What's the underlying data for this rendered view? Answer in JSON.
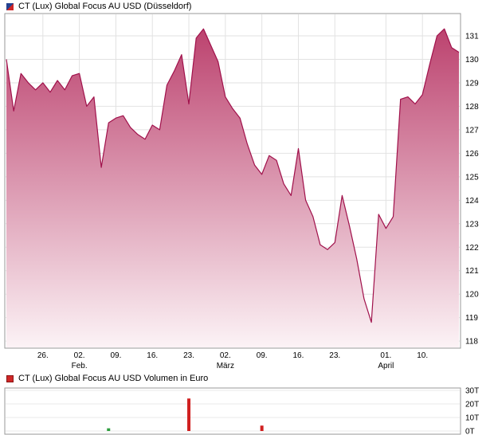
{
  "header": {
    "title": "CT (Lux) Global Focus AU USD (Düsseldorf)"
  },
  "volume_header": {
    "title": "CT (Lux) Global Focus AU USD Volumen in Euro"
  },
  "chart_data": [
    {
      "type": "area",
      "title": "CT (Lux) Global Focus AU USD (Düsseldorf)",
      "ylabel": "",
      "ylim": [
        117.7,
        131.95
      ],
      "y_ticks": [
        118,
        119,
        120,
        121,
        122,
        123,
        124,
        125,
        126,
        127,
        128,
        129,
        130,
        131
      ],
      "y_axis_side": "right",
      "grid": true,
      "x_tick_labels": [
        "26.",
        "02.",
        "09.",
        "16.",
        "23.",
        "02.",
        "09.",
        "16.",
        "23.",
        "01.",
        "10."
      ],
      "x_tick_indices": [
        5,
        10,
        15,
        20,
        25,
        30,
        35,
        40,
        45,
        52,
        57
      ],
      "month_labels": [
        {
          "label": "Feb.",
          "index": 10
        },
        {
          "label": "März",
          "index": 30
        },
        {
          "label": "April",
          "index": 52
        }
      ],
      "values": [
        130.0,
        127.8,
        129.4,
        129.0,
        128.7,
        129.0,
        128.6,
        129.1,
        128.7,
        129.3,
        129.4,
        128.0,
        128.4,
        125.4,
        127.3,
        127.5,
        127.6,
        127.1,
        126.8,
        126.6,
        127.2,
        127.0,
        128.9,
        129.5,
        130.2,
        128.1,
        130.9,
        131.3,
        130.6,
        129.9,
        128.4,
        127.9,
        127.5,
        126.4,
        125.5,
        125.1,
        125.9,
        125.7,
        124.7,
        124.2,
        126.2,
        124.0,
        123.3,
        122.1,
        121.9,
        122.2,
        124.2,
        122.9,
        121.5,
        119.8,
        118.8,
        123.4,
        122.8,
        123.3,
        128.3,
        128.4,
        128.1,
        128.5,
        129.8,
        131.0,
        131.3,
        130.5,
        130.3
      ],
      "colors": {
        "line": "#a0114b",
        "fill_top": "#b93a68",
        "fill_bottom": "#fcf3f6",
        "grid": "#e2e2e2",
        "frame": "#999999"
      }
    },
    {
      "type": "bar",
      "title": "CT (Lux) Global Focus AU USD Volumen in Euro",
      "y_ticks_labels": [
        "0T",
        "10T",
        "20T",
        "30T"
      ],
      "y_ticks_values": [
        0,
        10,
        20,
        30
      ],
      "ylim": [
        0,
        34
      ],
      "bars": [
        {
          "index": 14,
          "value_T": 2,
          "color": "#2e9e3e"
        },
        {
          "index": 25,
          "value_T": 24,
          "color": "#d02020"
        },
        {
          "index": 35,
          "value_T": 4,
          "color": "#d02020"
        }
      ],
      "colors": {
        "grid": "#e8e8e8",
        "frame": "#999999"
      }
    }
  ]
}
